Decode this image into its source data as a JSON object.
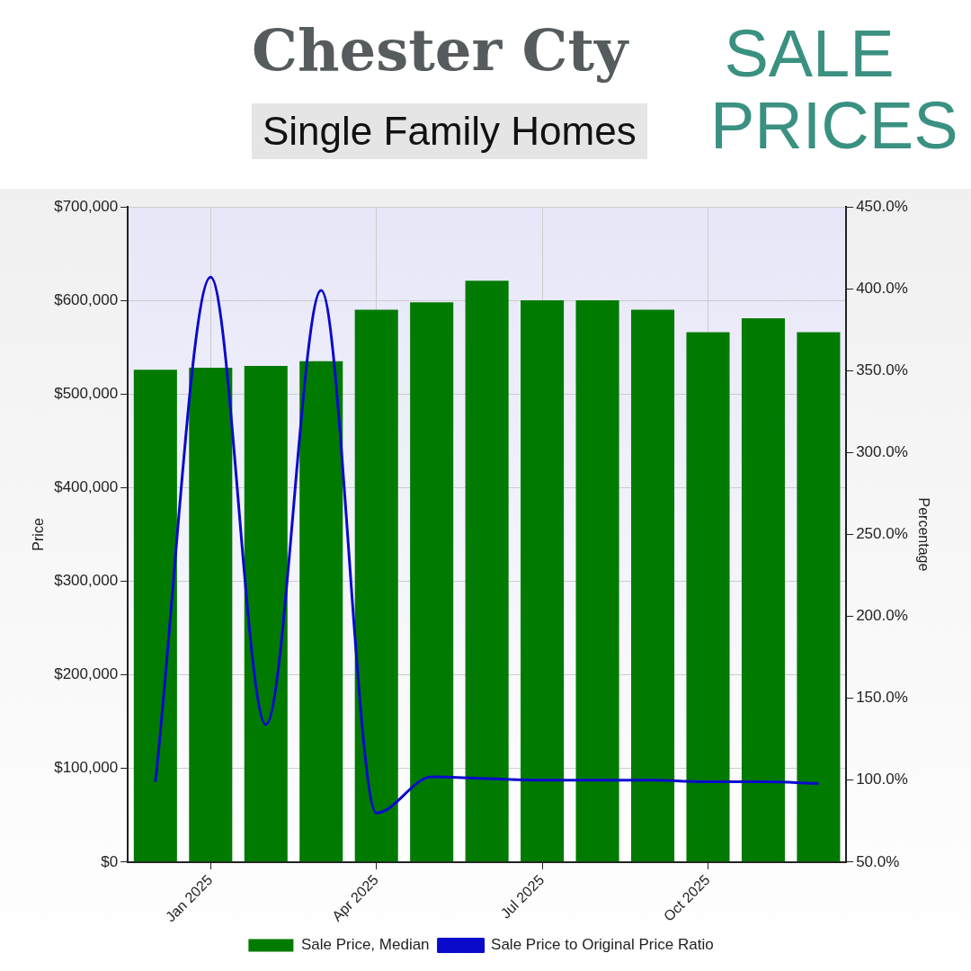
{
  "chart_data": {
    "type": "bar",
    "title": "Chester Cty",
    "subtitle": "Single Family Homes",
    "annotations": [
      "SALE PRICES"
    ],
    "xlabel": null,
    "ylabel": "Price",
    "y2label": "Percentage",
    "categories": [
      null,
      "Jan 2025",
      null,
      null,
      "Apr 2025",
      null,
      null,
      "Jul 2025",
      null,
      null,
      "Oct 2025",
      null,
      null
    ],
    "series": [
      {
        "name": "Sale Price, Median",
        "color": "#007a00",
        "values": [
          526000,
          528000,
          530000,
          535000,
          590000,
          598000,
          621000,
          600000,
          600000,
          590000,
          566000,
          581000,
          566000
        ]
      },
      {
        "name": "Sale Price to Original Price Ratio",
        "type": "line",
        "axis": "y2",
        "color": "#0a0acc",
        "values": [
          99,
          407,
          134,
          399,
          80,
          102,
          101,
          100,
          100,
          100,
          99,
          99,
          98
        ]
      }
    ],
    "ylim": [
      0,
      700000
    ],
    "yticks": [
      {
        "value": 0,
        "label": "$0"
      },
      {
        "value": 100000,
        "label": "$100,000"
      },
      {
        "value": 200000,
        "label": "$200,000"
      },
      {
        "value": 300000,
        "label": "$300,000"
      },
      {
        "value": 400000,
        "label": "$400,000"
      },
      {
        "value": 500000,
        "label": "$500,000"
      },
      {
        "value": 600000,
        "label": "$600,000"
      },
      {
        "value": 700000,
        "label": "$700,000"
      }
    ],
    "y2lim": [
      50,
      450
    ],
    "y2ticks": [
      {
        "value": 50,
        "label": "50.0%"
      },
      {
        "value": 100,
        "label": "100.0%"
      },
      {
        "value": 150,
        "label": "150.0%"
      },
      {
        "value": 200,
        "label": "200.0%"
      },
      {
        "value": 250,
        "label": "250.0%"
      },
      {
        "value": 300,
        "label": "300.0%"
      },
      {
        "value": 350,
        "label": "350.0%"
      },
      {
        "value": 400,
        "label": "400.0%"
      },
      {
        "value": 450,
        "label": "450.0%"
      }
    ],
    "grid": true,
    "legend": "bottom",
    "marker": "none"
  }
}
